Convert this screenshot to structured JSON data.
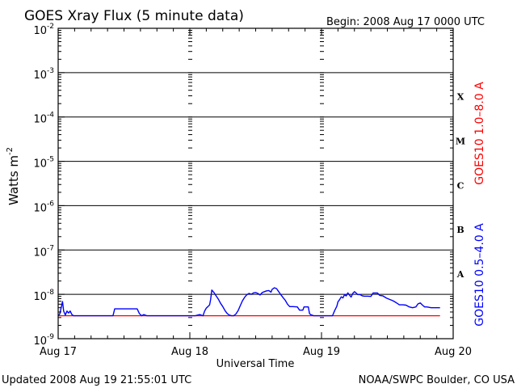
{
  "chart_data": {
    "type": "line",
    "title": "GOES Xray Flux (5 minute data)",
    "subtitle": "Begin:  2008 Aug 17 0000 UTC",
    "xlabel": "Universal Time",
    "ylabel_main": "Watts m",
    "ylabel_exp": "-2",
    "y_scale": "log",
    "ylim": [
      1e-09,
      0.01
    ],
    "xlim": [
      "2008-08-17 00:00",
      "2008-08-20 00:00"
    ],
    "y_ticks": [
      {
        "value": 0.01,
        "base": "10",
        "exp": "-2"
      },
      {
        "value": 0.001,
        "base": "10",
        "exp": "-3"
      },
      {
        "value": 0.0001,
        "base": "10",
        "exp": "-4"
      },
      {
        "value": 1e-05,
        "base": "10",
        "exp": "-5"
      },
      {
        "value": 1e-06,
        "base": "10",
        "exp": "-6"
      },
      {
        "value": 1e-07,
        "base": "10",
        "exp": "-7"
      },
      {
        "value": 1e-08,
        "base": "10",
        "exp": "-8"
      },
      {
        "value": 1e-09,
        "base": "10",
        "exp": "-9"
      }
    ],
    "x_ticks": [
      {
        "t": 0,
        "label": "Aug 17"
      },
      {
        "t": 24,
        "label": "Aug 18"
      },
      {
        "t": 48,
        "label": "Aug 19"
      },
      {
        "t": 72,
        "label": "Aug 20"
      }
    ],
    "flare_classes": [
      {
        "label": "X",
        "value": 0.0003
      },
      {
        "label": "M",
        "value": 3e-05
      },
      {
        "label": "C",
        "value": 3e-06
      },
      {
        "label": "B",
        "value": 3e-07
      },
      {
        "label": "A",
        "value": 3e-08
      }
    ],
    "grid_lines": [
      0.001,
      0.0001,
      1e-05,
      1e-06,
      1e-07,
      1e-08
    ],
    "legend_placement": "right-vertical",
    "series": [
      {
        "name": "GOES10 1.0–8.0 A",
        "color": "#ff0000",
        "points": [
          [
            0.0,
            3.3e-09
          ],
          [
            69.6,
            3.3e-09
          ]
        ]
      },
      {
        "name": "GOES10 0.5–4.0 A",
        "color": "#0000ff",
        "points": [
          [
            0.0,
            3.3e-09
          ],
          [
            0.3,
            3.6e-09
          ],
          [
            0.6,
            5.4e-09
          ],
          [
            0.8,
            6.9e-09
          ],
          [
            1.0,
            4.2e-09
          ],
          [
            1.3,
            3.4e-09
          ],
          [
            1.6,
            4.2e-09
          ],
          [
            1.9,
            3.8e-09
          ],
          [
            2.2,
            4.2e-09
          ],
          [
            2.5,
            3.5e-09
          ],
          [
            2.8,
            3.3e-09
          ],
          [
            4.0,
            3.3e-09
          ],
          [
            10.0,
            3.3e-09
          ],
          [
            10.3,
            4.7e-09
          ],
          [
            13.5,
            4.7e-09
          ],
          [
            14.4,
            4.7e-09
          ],
          [
            14.8,
            3.7e-09
          ],
          [
            15.2,
            3.3e-09
          ],
          [
            15.6,
            3.5e-09
          ],
          [
            16.2,
            3.3e-09
          ],
          [
            16.8,
            3.3e-09
          ],
          [
            25.0,
            3.3e-09
          ],
          [
            25.8,
            3.5e-09
          ],
          [
            26.4,
            3.3e-09
          ],
          [
            26.7,
            4.2e-09
          ],
          [
            27.0,
            4.9e-09
          ],
          [
            27.3,
            5.3e-09
          ],
          [
            27.6,
            5.8e-09
          ],
          [
            27.8,
            7.8e-09
          ],
          [
            28.0,
            1.25e-08
          ],
          [
            28.4,
            1.1e-08
          ],
          [
            28.8,
            9.2e-09
          ],
          [
            29.2,
            7.8e-09
          ],
          [
            29.6,
            6.3e-09
          ],
          [
            30.0,
            5.3e-09
          ],
          [
            30.4,
            4.3e-09
          ],
          [
            30.8,
            3.7e-09
          ],
          [
            31.2,
            3.4e-09
          ],
          [
            31.6,
            3.3e-09
          ],
          [
            32.0,
            3.3e-09
          ],
          [
            32.4,
            3.6e-09
          ],
          [
            32.8,
            4.3e-09
          ],
          [
            33.2,
            5.6e-09
          ],
          [
            33.6,
            7.2e-09
          ],
          [
            34.0,
            8.6e-09
          ],
          [
            34.4,
            9.8e-09
          ],
          [
            34.8,
            1.05e-08
          ],
          [
            35.2,
            1e-08
          ],
          [
            35.6,
            1.08e-08
          ],
          [
            36.0,
            1.1e-08
          ],
          [
            36.4,
            1.05e-08
          ],
          [
            36.8,
            9.7e-09
          ],
          [
            37.2,
            1.1e-08
          ],
          [
            37.6,
            1.15e-08
          ],
          [
            38.0,
            1.2e-08
          ],
          [
            38.4,
            1.22e-08
          ],
          [
            38.8,
            1.12e-08
          ],
          [
            39.0,
            1.3e-08
          ],
          [
            39.4,
            1.4e-08
          ],
          [
            39.8,
            1.35e-08
          ],
          [
            40.2,
            1.15e-08
          ],
          [
            40.6,
            9.8e-09
          ],
          [
            41.0,
            8.4e-09
          ],
          [
            41.4,
            7.3e-09
          ],
          [
            41.8,
            6e-09
          ],
          [
            42.2,
            5.3e-09
          ],
          [
            42.8,
            5.3e-09
          ],
          [
            43.6,
            5.2e-09
          ],
          [
            44.0,
            4.4e-09
          ],
          [
            44.6,
            4.4e-09
          ],
          [
            44.8,
            5.2e-09
          ],
          [
            45.6,
            5.2e-09
          ],
          [
            45.8,
            3.7e-09
          ],
          [
            46.0,
            3.5e-09
          ],
          [
            46.6,
            3.3e-09
          ],
          [
            50.0,
            3.3e-09
          ],
          [
            50.4,
            4.3e-09
          ],
          [
            50.8,
            5.4e-09
          ],
          [
            51.0,
            6.8e-09
          ],
          [
            51.3,
            7.6e-09
          ],
          [
            51.6,
            8.8e-09
          ],
          [
            51.9,
            8.3e-09
          ],
          [
            52.2,
            9.8e-09
          ],
          [
            52.5,
            9.2e-09
          ],
          [
            52.8,
            1.08e-08
          ],
          [
            53.1,
            9.6e-09
          ],
          [
            53.4,
            8.7e-09
          ],
          [
            53.7,
            1.05e-08
          ],
          [
            54.0,
            1.15e-08
          ],
          [
            54.3,
            1.07e-08
          ],
          [
            54.6,
            9.9e-09
          ],
          [
            55.0,
            9.9e-09
          ],
          [
            55.4,
            9.3e-09
          ],
          [
            55.8,
            9.1e-09
          ],
          [
            56.4,
            9.1e-09
          ],
          [
            57.0,
            9e-09
          ],
          [
            57.4,
            1.07e-08
          ],
          [
            58.2,
            1.07e-08
          ],
          [
            58.6,
            9.5e-09
          ],
          [
            59.2,
            9.2e-09
          ],
          [
            59.8,
            8.3e-09
          ],
          [
            60.4,
            7.7e-09
          ],
          [
            61.0,
            7.2e-09
          ],
          [
            61.6,
            6.5e-09
          ],
          [
            62.2,
            5.8e-09
          ],
          [
            62.8,
            5.8e-09
          ],
          [
            63.4,
            5.7e-09
          ],
          [
            64.0,
            5.2e-09
          ],
          [
            64.6,
            5e-09
          ],
          [
            65.2,
            5.2e-09
          ],
          [
            65.6,
            6.1e-09
          ],
          [
            66.0,
            6.4e-09
          ],
          [
            66.4,
            5.7e-09
          ],
          [
            66.8,
            5.2e-09
          ],
          [
            67.2,
            5.2e-09
          ],
          [
            68.0,
            5e-09
          ],
          [
            69.6,
            5e-09
          ]
        ]
      }
    ]
  },
  "footer": {
    "updated": "Updated 2008 Aug 19 21:55:01 UTC",
    "credit": "NOAA/SWPC Boulder, CO USA"
  },
  "colors": {
    "background": "#ffffff",
    "axes": "#000000",
    "long_channel": "#ff0000",
    "short_channel": "#0000ff"
  }
}
